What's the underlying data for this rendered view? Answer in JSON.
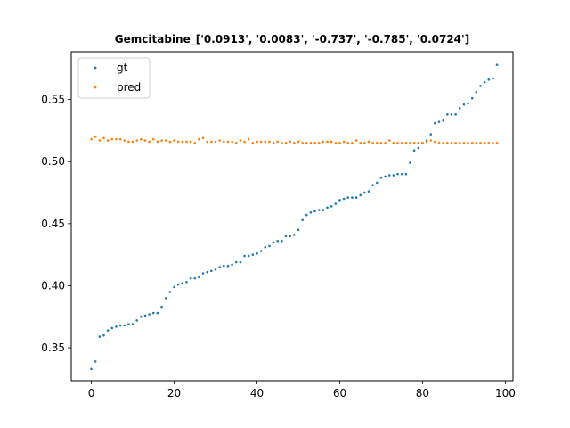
{
  "chart_data": {
    "type": "scatter",
    "title": "Gemcitabine_['0.0913', '0.0083', '-0.737', '-0.785', '0.0724']",
    "xlabel": "",
    "ylabel": "",
    "xlim": [
      -4.85,
      101.85
    ],
    "ylim": [
      0.3235,
      0.5885
    ],
    "xticks": [
      0,
      20,
      40,
      60,
      80,
      100
    ],
    "xtick_labels": [
      "0",
      "20",
      "40",
      "60",
      "80",
      "100"
    ],
    "yticks": [
      0.35,
      0.4,
      0.45,
      0.5,
      0.55
    ],
    "ytick_labels": [
      "0.35",
      "0.40",
      "0.45",
      "0.50",
      "0.55"
    ],
    "grid": false,
    "legend_position": "top-left",
    "series": [
      {
        "name": "gt",
        "color": "#1f77b4",
        "y": [
          0.333,
          0.339,
          0.359,
          0.36,
          0.364,
          0.366,
          0.367,
          0.368,
          0.368,
          0.369,
          0.369,
          0.372,
          0.375,
          0.376,
          0.377,
          0.378,
          0.378,
          0.383,
          0.39,
          0.395,
          0.399,
          0.401,
          0.402,
          0.403,
          0.406,
          0.406,
          0.407,
          0.41,
          0.411,
          0.412,
          0.413,
          0.415,
          0.416,
          0.416,
          0.417,
          0.419,
          0.419,
          0.424,
          0.424,
          0.425,
          0.426,
          0.428,
          0.431,
          0.432,
          0.435,
          0.436,
          0.436,
          0.44,
          0.44,
          0.441,
          0.445,
          0.453,
          0.457,
          0.459,
          0.46,
          0.461,
          0.461,
          0.463,
          0.464,
          0.466,
          0.469,
          0.47,
          0.471,
          0.471,
          0.471,
          0.473,
          0.475,
          0.476,
          0.481,
          0.483,
          0.487,
          0.488,
          0.489,
          0.489,
          0.49,
          0.49,
          0.49,
          0.499,
          0.509,
          0.511,
          0.515,
          0.517,
          0.522,
          0.531,
          0.532,
          0.533,
          0.538,
          0.538,
          0.538,
          0.543,
          0.546,
          0.547,
          0.551,
          0.556,
          0.561,
          0.564,
          0.566,
          0.567,
          0.578
        ]
      },
      {
        "name": "pred",
        "color": "#ff7f0e",
        "y": [
          0.518,
          0.52,
          0.517,
          0.519,
          0.517,
          0.518,
          0.518,
          0.518,
          0.517,
          0.516,
          0.516,
          0.517,
          0.518,
          0.517,
          0.516,
          0.518,
          0.516,
          0.517,
          0.517,
          0.516,
          0.517,
          0.516,
          0.516,
          0.516,
          0.516,
          0.515,
          0.518,
          0.519,
          0.516,
          0.516,
          0.516,
          0.517,
          0.516,
          0.516,
          0.516,
          0.515,
          0.517,
          0.516,
          0.518,
          0.515,
          0.516,
          0.516,
          0.516,
          0.516,
          0.515,
          0.516,
          0.515,
          0.515,
          0.516,
          0.515,
          0.516,
          0.515,
          0.515,
          0.515,
          0.515,
          0.515,
          0.516,
          0.516,
          0.516,
          0.515,
          0.515,
          0.516,
          0.515,
          0.515,
          0.517,
          0.515,
          0.515,
          0.516,
          0.515,
          0.515,
          0.515,
          0.515,
          0.517,
          0.515,
          0.515,
          0.515,
          0.515,
          0.515,
          0.515,
          0.515,
          0.515,
          0.516,
          0.517,
          0.516,
          0.515,
          0.515,
          0.515,
          0.515,
          0.515,
          0.515,
          0.515,
          0.515,
          0.515,
          0.515,
          0.515,
          0.515,
          0.515,
          0.515,
          0.515
        ]
      }
    ]
  }
}
